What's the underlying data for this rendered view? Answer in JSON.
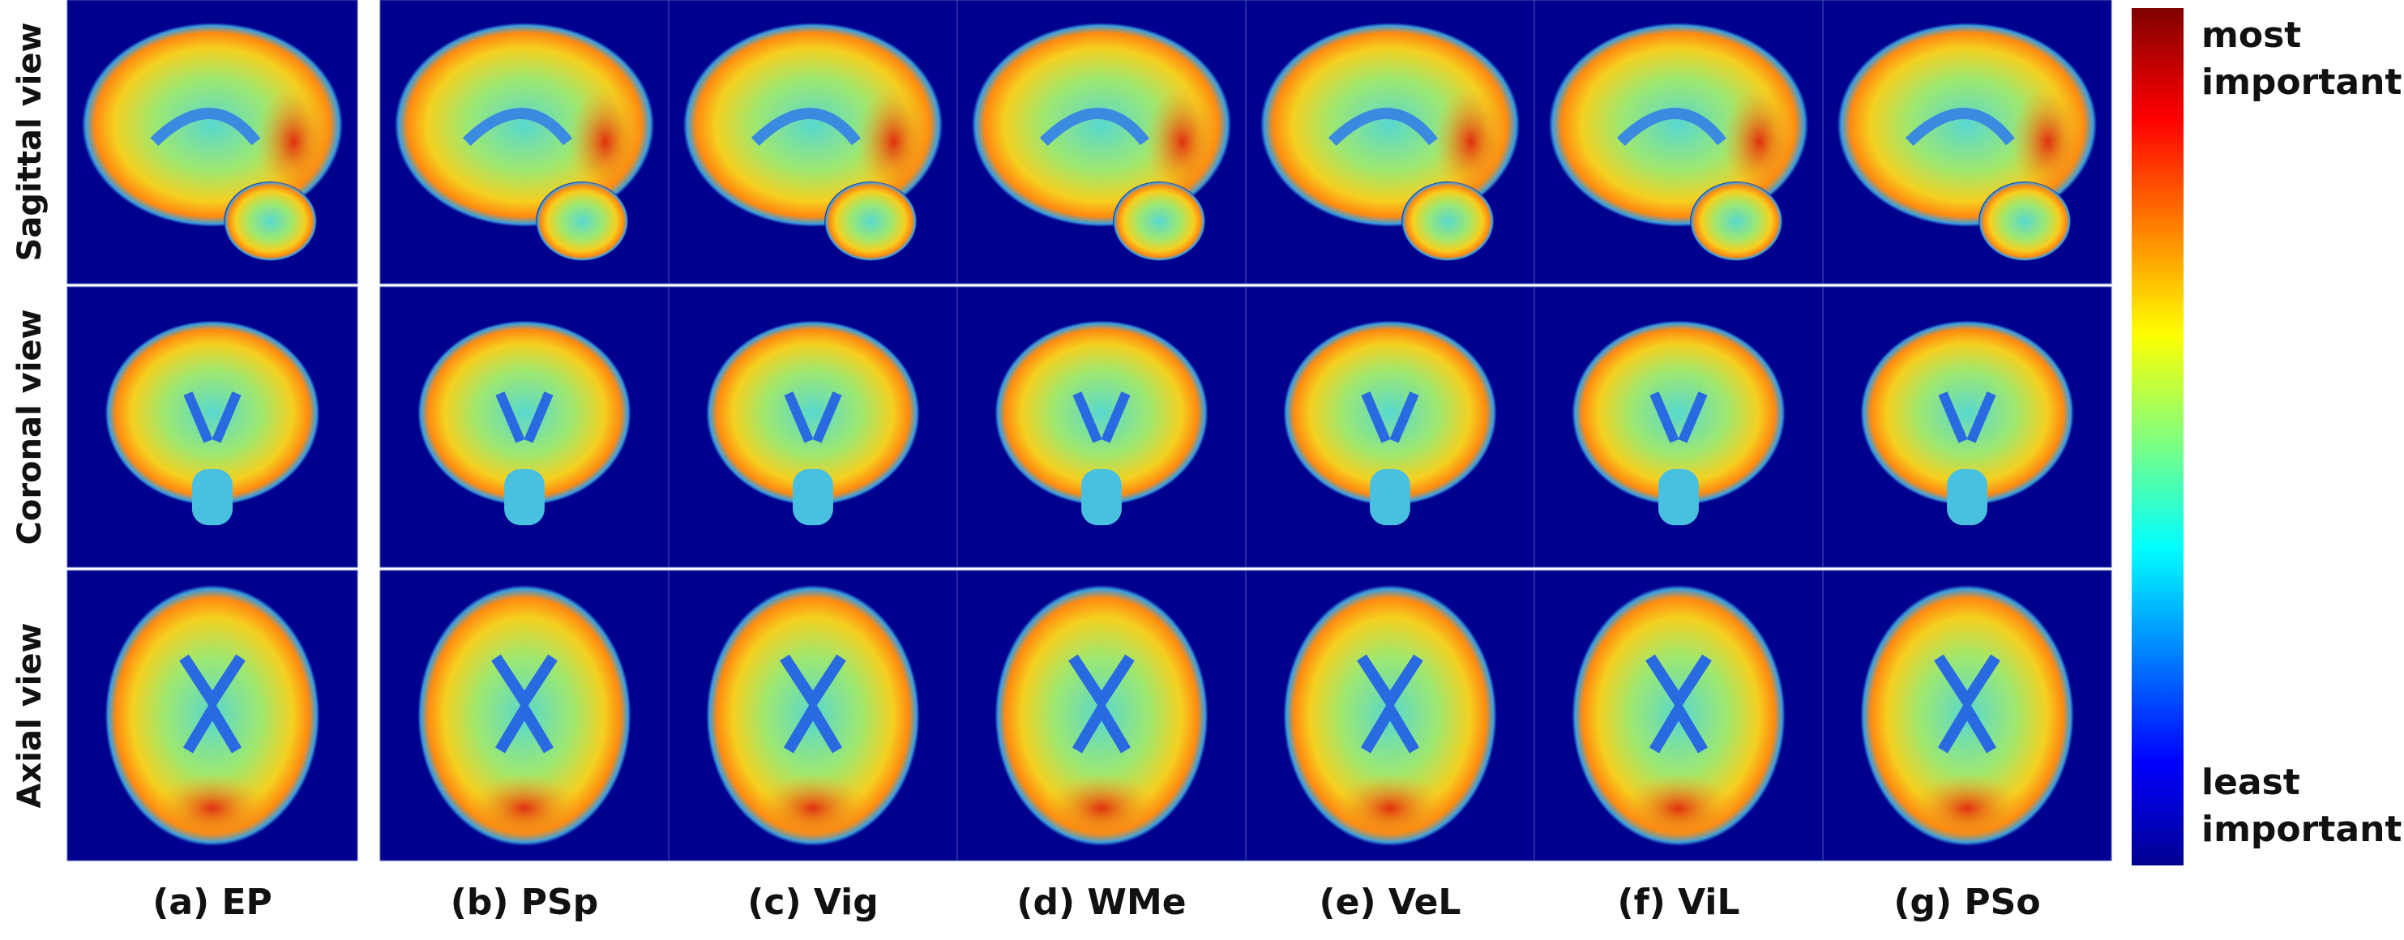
{
  "row_labels": [
    "Sagittal view",
    "Coronal view",
    "Axial view"
  ],
  "columns": [
    "(a) EP",
    "(b) PSp",
    "(c) Vig",
    "(d) WMe",
    "(e) VeL",
    "(f) ViL",
    "(g) PSo"
  ],
  "colorbar": {
    "max_label": [
      "most",
      "important"
    ],
    "min_label": [
      "least",
      "important"
    ]
  }
}
